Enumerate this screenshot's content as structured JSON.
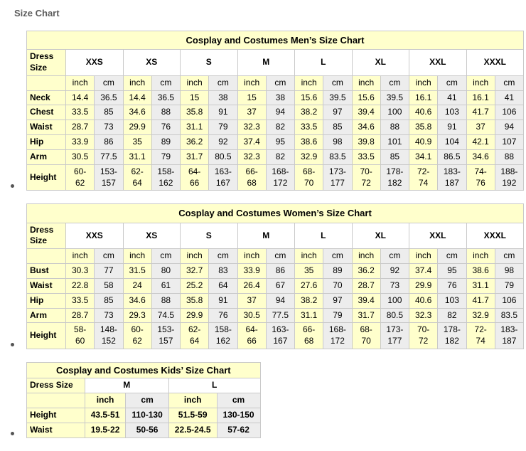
{
  "page": {
    "heading": "Size Chart"
  },
  "colors": {
    "header_bg": "#FFFFCC",
    "inch_bg": "#FFFFCC",
    "cm_bg": "#EDEDED",
    "border": "#C9C9C9",
    "bullet": "#555555",
    "heading_text": "#5C5C5C"
  },
  "tables": [
    {
      "id": "mens",
      "title": "Cosplay and Costumes Men’s Size Chart",
      "corner_label": "Dress Size",
      "sizes": [
        "XXS",
        "XS",
        "S",
        "M",
        "L",
        "XL",
        "XXL",
        "XXXL"
      ],
      "unit_labels": [
        "inch",
        "cm"
      ],
      "rows": [
        {
          "label": "Neck",
          "values": [
            "14.4",
            "36.5",
            "14.4",
            "36.5",
            "15",
            "38",
            "15",
            "38",
            "15.6",
            "39.5",
            "15.6",
            "39.5",
            "16.1",
            "41",
            "16.1",
            "41"
          ]
        },
        {
          "label": "Chest",
          "values": [
            "33.5",
            "85",
            "34.6",
            "88",
            "35.8",
            "91",
            "37",
            "94",
            "38.2",
            "97",
            "39.4",
            "100",
            "40.6",
            "103",
            "41.7",
            "106"
          ]
        },
        {
          "label": "Waist",
          "values": [
            "28.7",
            "73",
            "29.9",
            "76",
            "31.1",
            "79",
            "32.3",
            "82",
            "33.5",
            "85",
            "34.6",
            "88",
            "35.8",
            "91",
            "37",
            "94"
          ]
        },
        {
          "label": "Hip",
          "values": [
            "33.9",
            "86",
            "35",
            "89",
            "36.2",
            "92",
            "37.4",
            "95",
            "38.6",
            "98",
            "39.8",
            "101",
            "40.9",
            "104",
            "42.1",
            "107"
          ]
        },
        {
          "label": "Arm",
          "values": [
            "30.5",
            "77.5",
            "31.1",
            "79",
            "31.7",
            "80.5",
            "32.3",
            "82",
            "32.9",
            "83.5",
            "33.5",
            "85",
            "34.1",
            "86.5",
            "34.6",
            "88"
          ]
        },
        {
          "label": "Height",
          "wrap_values": true,
          "values": [
            "60-62",
            "153-157",
            "62-64",
            "158-162",
            "64-66",
            "163-167",
            "66-68",
            "168-172",
            "68-70",
            "173-177",
            "70-72",
            "178-182",
            "72-74",
            "183-187",
            "74-76",
            "188-192"
          ]
        }
      ]
    },
    {
      "id": "womens",
      "title": "Cosplay and Costumes Women’s Size Chart",
      "corner_label": "Dress Size",
      "sizes": [
        "XXS",
        "XS",
        "S",
        "M",
        "L",
        "XL",
        "XXL",
        "XXXL"
      ],
      "unit_labels": [
        "inch",
        "cm"
      ],
      "rows": [
        {
          "label": "Bust",
          "values": [
            "30.3",
            "77",
            "31.5",
            "80",
            "32.7",
            "83",
            "33.9",
            "86",
            "35",
            "89",
            "36.2",
            "92",
            "37.4",
            "95",
            "38.6",
            "98"
          ]
        },
        {
          "label": "Waist",
          "values": [
            "22.8",
            "58",
            "24",
            "61",
            "25.2",
            "64",
            "26.4",
            "67",
            "27.6",
            "70",
            "28.7",
            "73",
            "29.9",
            "76",
            "31.1",
            "79"
          ]
        },
        {
          "label": "Hip",
          "values": [
            "33.5",
            "85",
            "34.6",
            "88",
            "35.8",
            "91",
            "37",
            "94",
            "38.2",
            "97",
            "39.4",
            "100",
            "40.6",
            "103",
            "41.7",
            "106"
          ]
        },
        {
          "label": "Arm",
          "values": [
            "28.7",
            "73",
            "29.3",
            "74.5",
            "29.9",
            "76",
            "30.5",
            "77.5",
            "31.1",
            "79",
            "31.7",
            "80.5",
            "32.3",
            "82",
            "32.9",
            "83.5"
          ]
        },
        {
          "label": "Height",
          "wrap_values": true,
          "values": [
            "58-60",
            "148-152",
            "60-62",
            "153-157",
            "62-64",
            "158-162",
            "64-66",
            "163-167",
            "66-68",
            "168-172",
            "68-70",
            "173-177",
            "70-72",
            "178-182",
            "72-74",
            "183-187"
          ]
        }
      ]
    },
    {
      "id": "kids",
      "title": "Cosplay and Costumes Kids’ Size Chart",
      "corner_label": "Dress Size",
      "sizes": [
        "M",
        "L"
      ],
      "unit_labels": [
        "inch",
        "cm"
      ],
      "rows": [
        {
          "label": "Height",
          "values": [
            "43.5-51",
            "110-130",
            "51.5-59",
            "130-150"
          ]
        },
        {
          "label": "Waist",
          "values": [
            "19.5-22",
            "50-56",
            "22.5-24.5",
            "57-62"
          ]
        }
      ]
    }
  ]
}
